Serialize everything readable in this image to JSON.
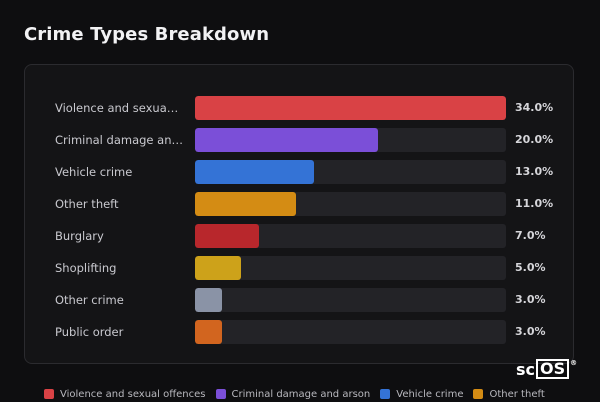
{
  "chart_data": {
    "type": "bar",
    "orientation": "horizontal",
    "title": "Crime Types Breakdown",
    "categories": [
      "Violence and sexua…",
      "Criminal damage an…",
      "Vehicle crime",
      "Other theft",
      "Burglary",
      "Shoplifting",
      "Other crime",
      "Public order"
    ],
    "values": [
      34.0,
      20.0,
      13.0,
      11.0,
      7.0,
      5.0,
      3.0,
      3.0
    ],
    "value_labels": [
      "34.0%",
      "20.0%",
      "13.0%",
      "11.0%",
      "7.0%",
      "5.0%",
      "3.0%",
      "3.0%"
    ],
    "colors": [
      "#d94245",
      "#7b4fd8",
      "#3473d6",
      "#d48c14",
      "#b8272c",
      "#cda21a",
      "#8a93a6",
      "#d2651f"
    ],
    "xlim": [
      0,
      34
    ],
    "grid": false,
    "legend_position": "bottom",
    "legend": [
      {
        "label": "Violence and sexual offences",
        "color": "#d94245"
      },
      {
        "label": "Criminal damage and arson",
        "color": "#7b4fd8"
      },
      {
        "label": "Vehicle crime",
        "color": "#3473d6"
      },
      {
        "label": "Other theft",
        "color": "#d48c14"
      }
    ]
  },
  "logo": {
    "left": "sc",
    "right": "OS",
    "mark": "®"
  }
}
